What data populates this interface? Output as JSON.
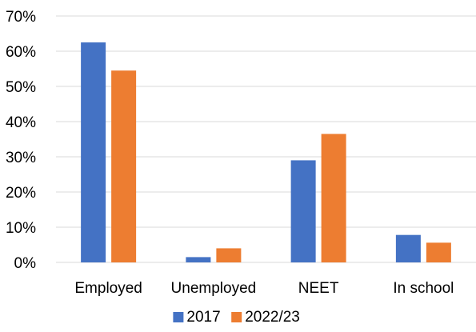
{
  "chart_data": {
    "type": "bar",
    "categories": [
      "Employed",
      "Unemployed",
      "NEET",
      "In school"
    ],
    "series": [
      {
        "name": "2017",
        "values": [
          62.5,
          1.5,
          29.0,
          7.8
        ],
        "color": "#4472C4"
      },
      {
        "name": "2022/23",
        "values": [
          54.5,
          4.0,
          36.5,
          5.6
        ],
        "color": "#ED7D31"
      }
    ],
    "ylim": [
      0,
      70
    ],
    "yticks": [
      0,
      10,
      20,
      30,
      40,
      50,
      60,
      70
    ],
    "ytick_format": "percent",
    "grid": true,
    "grid_color": "#D9D9D9",
    "legend": "bottom"
  }
}
